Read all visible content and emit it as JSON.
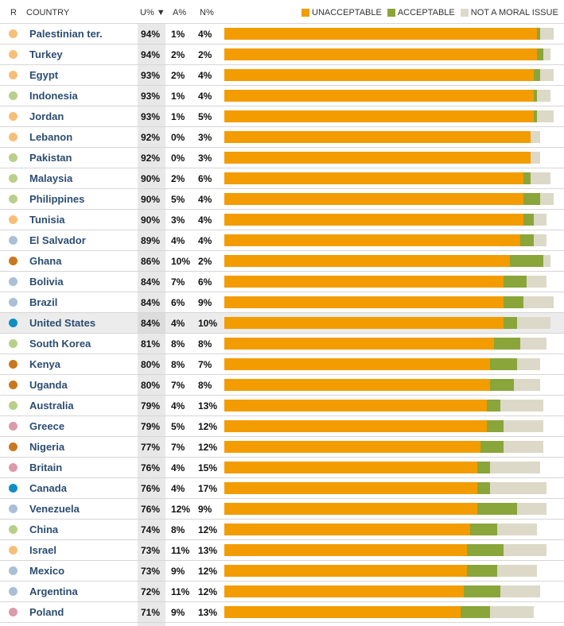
{
  "header": {
    "r": "R",
    "country": "COUNTRY",
    "u": "U% ▼",
    "a": "A%",
    "n": "N%"
  },
  "legend": [
    {
      "label": "UNACCEPTABLE",
      "color": "#f39c00"
    },
    {
      "label": "ACCEPTABLE",
      "color": "#8aa53a"
    },
    {
      "label": "NOT A MORAL ISSUE",
      "color": "#dcd9c8"
    }
  ],
  "region_colors": {
    "mideast": "#f5bf7a",
    "asia": "#b8cf8a",
    "latam": "#a9c0d6",
    "africa": "#c8781e",
    "northam": "#0f8fc0",
    "europe": "#dd9aac"
  },
  "chart_data": {
    "type": "bar",
    "stacked": true,
    "orientation": "horizontal",
    "xlim": [
      0,
      100
    ],
    "highlighted": "United States",
    "series": [
      {
        "name": "UNACCEPTABLE",
        "color": "#f39c00"
      },
      {
        "name": "ACCEPTABLE",
        "color": "#8aa53a"
      },
      {
        "name": "NOT A MORAL ISSUE",
        "color": "#dcd9c8"
      }
    ],
    "rows": [
      {
        "country": "Palestinian ter.",
        "region": "mideast",
        "u": 94,
        "a": 1,
        "n": 4,
        "u_label": "94%",
        "a_label": "1%",
        "n_label": "4%"
      },
      {
        "country": "Turkey",
        "region": "mideast",
        "u": 94,
        "a": 2,
        "n": 2,
        "u_label": "94%",
        "a_label": "2%",
        "n_label": "2%"
      },
      {
        "country": "Egypt",
        "region": "mideast",
        "u": 93,
        "a": 2,
        "n": 4,
        "u_label": "93%",
        "a_label": "2%",
        "n_label": "4%"
      },
      {
        "country": "Indonesia",
        "region": "asia",
        "u": 93,
        "a": 1,
        "n": 4,
        "u_label": "93%",
        "a_label": "1%",
        "n_label": "4%"
      },
      {
        "country": "Jordan",
        "region": "mideast",
        "u": 93,
        "a": 1,
        "n": 5,
        "u_label": "93%",
        "a_label": "1%",
        "n_label": "5%"
      },
      {
        "country": "Lebanon",
        "region": "mideast",
        "u": 92,
        "a": 0,
        "n": 3,
        "u_label": "92%",
        "a_label": "0%",
        "n_label": "3%"
      },
      {
        "country": "Pakistan",
        "region": "asia",
        "u": 92,
        "a": 0,
        "n": 3,
        "u_label": "92%",
        "a_label": "0%",
        "n_label": "3%"
      },
      {
        "country": "Malaysia",
        "region": "asia",
        "u": 90,
        "a": 2,
        "n": 6,
        "u_label": "90%",
        "a_label": "2%",
        "n_label": "6%"
      },
      {
        "country": "Philippines",
        "region": "asia",
        "u": 90,
        "a": 5,
        "n": 4,
        "u_label": "90%",
        "a_label": "5%",
        "n_label": "4%"
      },
      {
        "country": "Tunisia",
        "region": "mideast",
        "u": 90,
        "a": 3,
        "n": 4,
        "u_label": "90%",
        "a_label": "3%",
        "n_label": "4%"
      },
      {
        "country": "El Salvador",
        "region": "latam",
        "u": 89,
        "a": 4,
        "n": 4,
        "u_label": "89%",
        "a_label": "4%",
        "n_label": "4%"
      },
      {
        "country": "Ghana",
        "region": "africa",
        "u": 86,
        "a": 10,
        "n": 2,
        "u_label": "86%",
        "a_label": "10%",
        "n_label": "2%"
      },
      {
        "country": "Bolivia",
        "region": "latam",
        "u": 84,
        "a": 7,
        "n": 6,
        "u_label": "84%",
        "a_label": "7%",
        "n_label": "6%"
      },
      {
        "country": "Brazil",
        "region": "latam",
        "u": 84,
        "a": 6,
        "n": 9,
        "u_label": "84%",
        "a_label": "6%",
        "n_label": "9%"
      },
      {
        "country": "United States",
        "region": "northam",
        "u": 84,
        "a": 4,
        "n": 10,
        "u_label": "84%",
        "a_label": "4%",
        "n_label": "10%"
      },
      {
        "country": "South Korea",
        "region": "asia",
        "u": 81,
        "a": 8,
        "n": 8,
        "u_label": "81%",
        "a_label": "8%",
        "n_label": "8%"
      },
      {
        "country": "Kenya",
        "region": "africa",
        "u": 80,
        "a": 8,
        "n": 7,
        "u_label": "80%",
        "a_label": "8%",
        "n_label": "7%"
      },
      {
        "country": "Uganda",
        "region": "africa",
        "u": 80,
        "a": 7,
        "n": 8,
        "u_label": "80%",
        "a_label": "7%",
        "n_label": "8%"
      },
      {
        "country": "Australia",
        "region": "asia",
        "u": 79,
        "a": 4,
        "n": 13,
        "u_label": "79%",
        "a_label": "4%",
        "n_label": "13%"
      },
      {
        "country": "Greece",
        "region": "europe",
        "u": 79,
        "a": 5,
        "n": 12,
        "u_label": "79%",
        "a_label": "5%",
        "n_label": "12%"
      },
      {
        "country": "Nigeria",
        "region": "africa",
        "u": 77,
        "a": 7,
        "n": 12,
        "u_label": "77%",
        "a_label": "7%",
        "n_label": "12%"
      },
      {
        "country": "Britain",
        "region": "europe",
        "u": 76,
        "a": 4,
        "n": 15,
        "u_label": "76%",
        "a_label": "4%",
        "n_label": "15%"
      },
      {
        "country": "Canada",
        "region": "northam",
        "u": 76,
        "a": 4,
        "n": 17,
        "u_label": "76%",
        "a_label": "4%",
        "n_label": "17%"
      },
      {
        "country": "Venezuela",
        "region": "latam",
        "u": 76,
        "a": 12,
        "n": 9,
        "u_label": "76%",
        "a_label": "12%",
        "n_label": "9%"
      },
      {
        "country": "China",
        "region": "asia",
        "u": 74,
        "a": 8,
        "n": 12,
        "u_label": "74%",
        "a_label": "8%",
        "n_label": "12%"
      },
      {
        "country": "Israel",
        "region": "mideast",
        "u": 73,
        "a": 11,
        "n": 13,
        "u_label": "73%",
        "a_label": "11%",
        "n_label": "13%"
      },
      {
        "country": "Mexico",
        "region": "latam",
        "u": 73,
        "a": 9,
        "n": 12,
        "u_label": "73%",
        "a_label": "9%",
        "n_label": "12%"
      },
      {
        "country": "Argentina",
        "region": "latam",
        "u": 72,
        "a": 11,
        "n": 12,
        "u_label": "72%",
        "a_label": "11%",
        "n_label": "12%"
      },
      {
        "country": "Poland",
        "region": "europe",
        "u": 71,
        "a": 9,
        "n": 13,
        "u_label": "71%",
        "a_label": "9%",
        "n_label": "13%"
      }
    ]
  }
}
